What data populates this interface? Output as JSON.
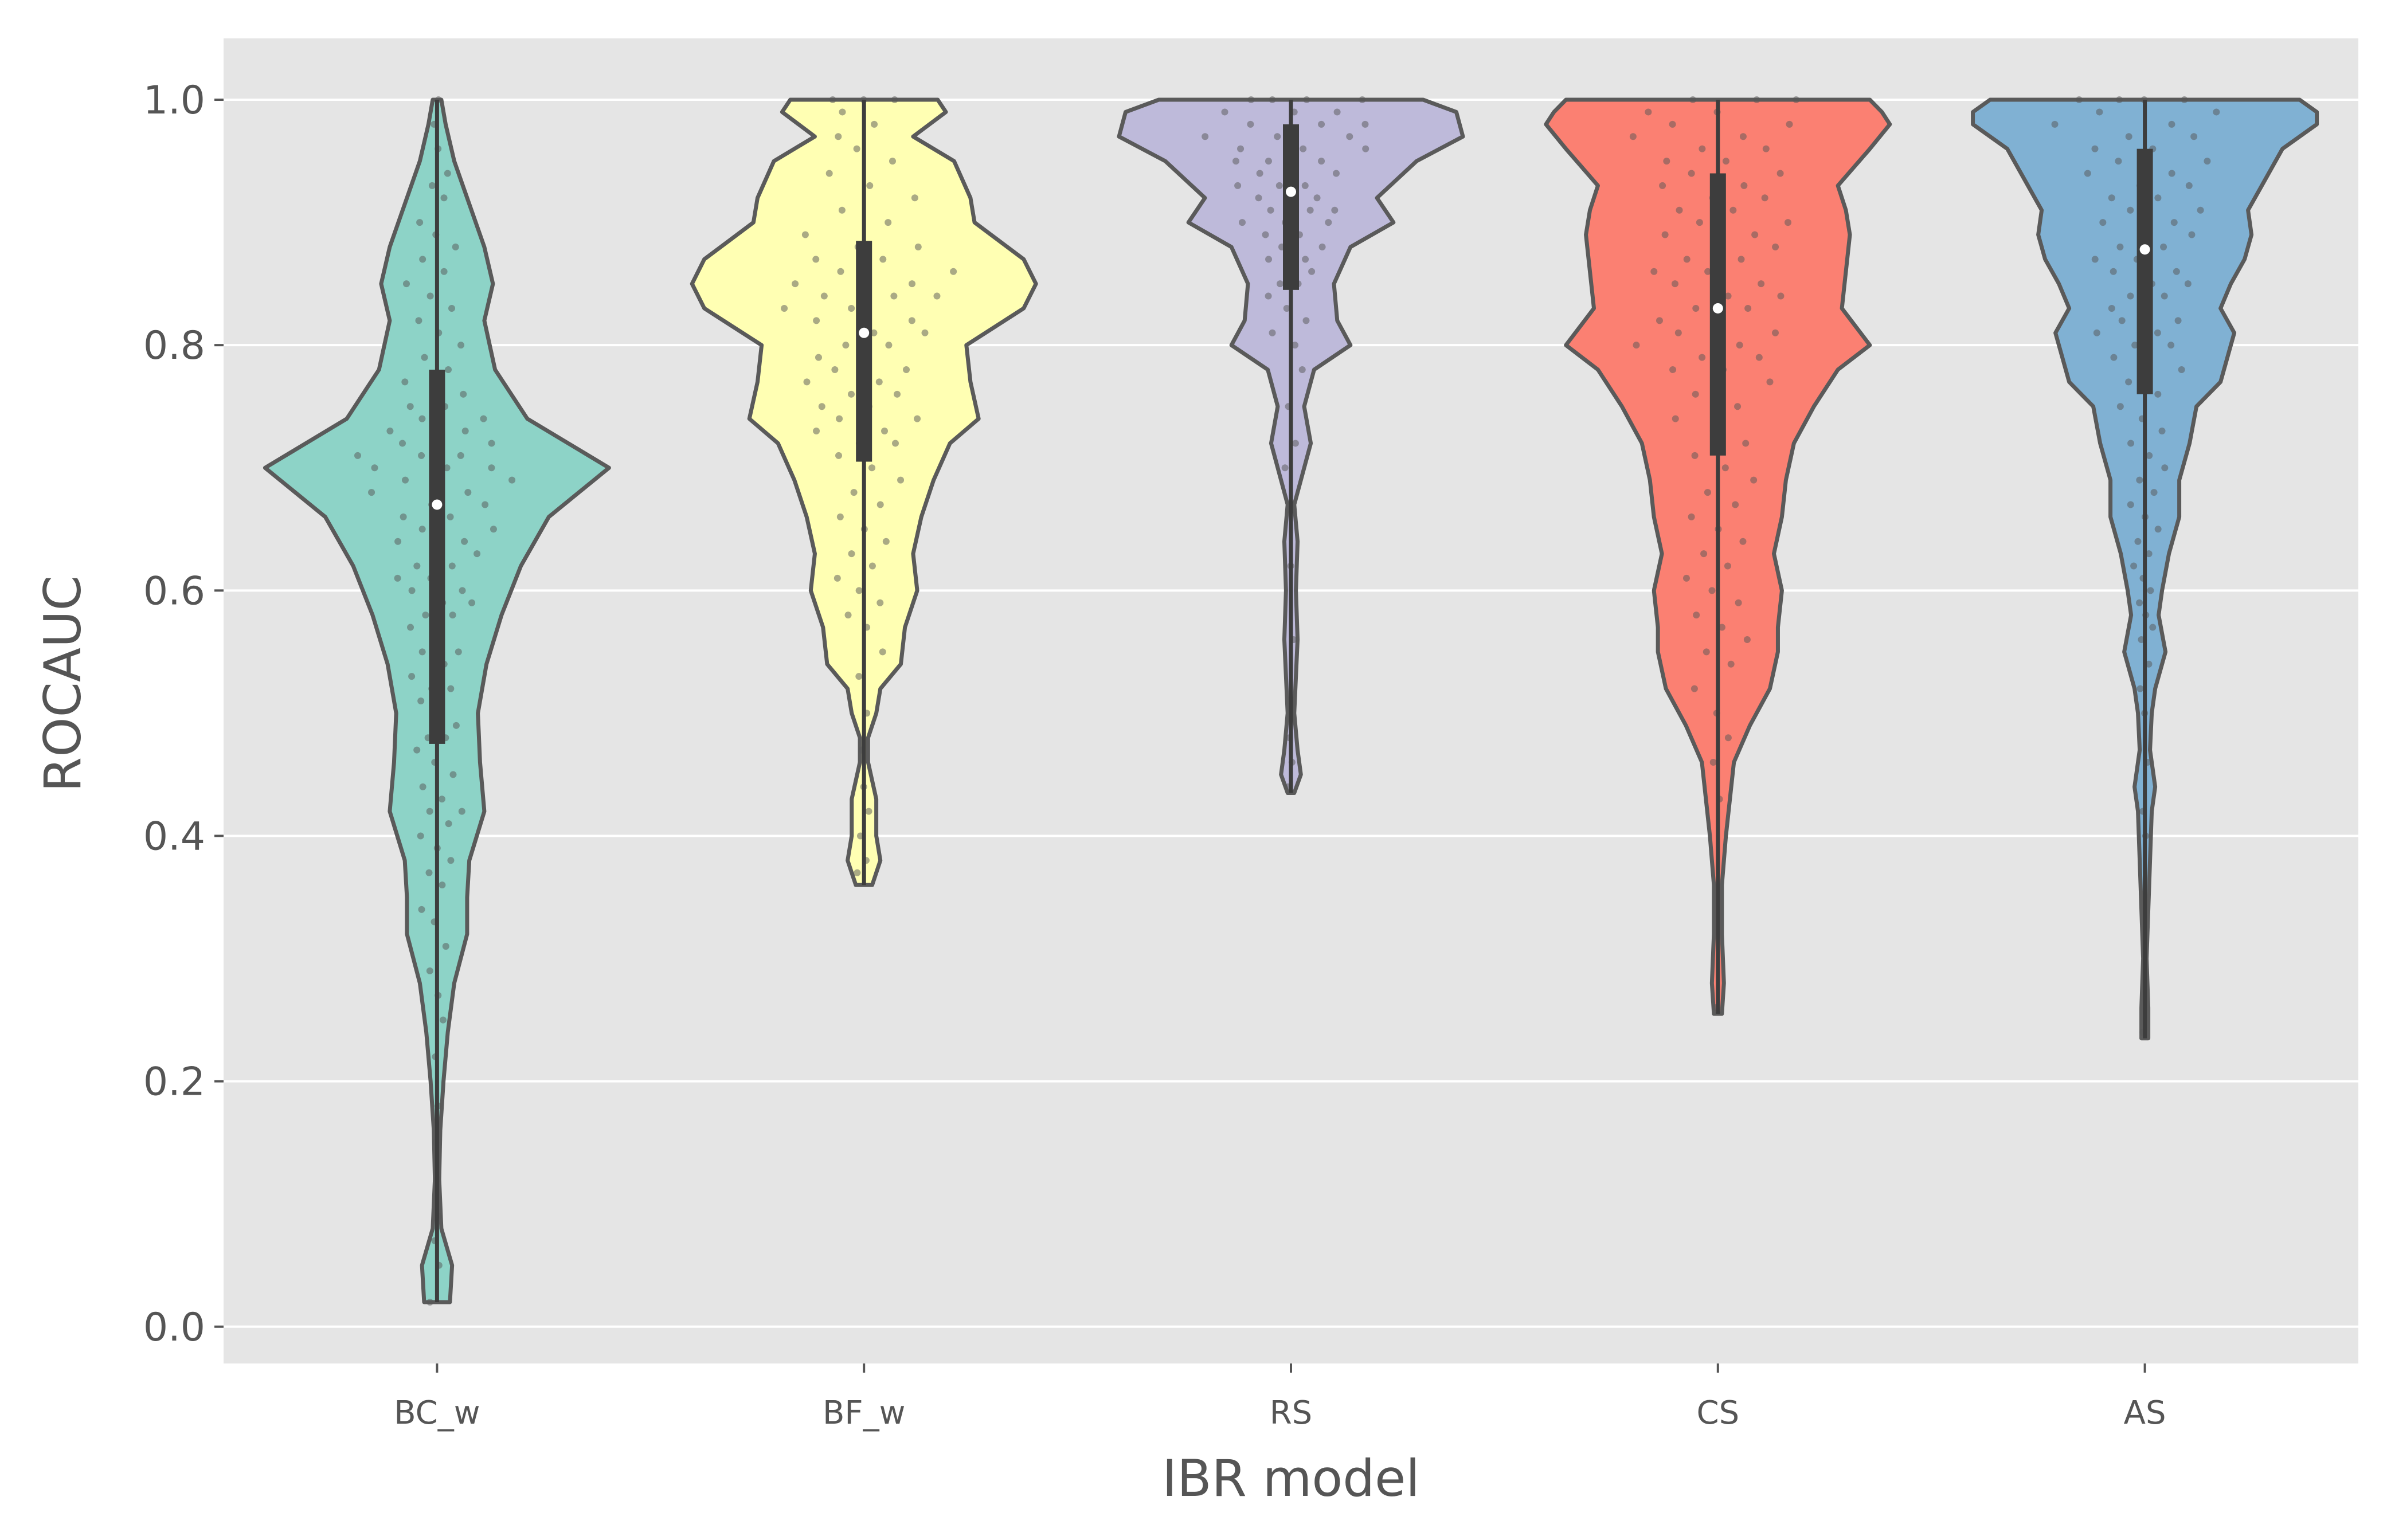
{
  "chart_data": {
    "type": "violin",
    "xlabel": "IBR model",
    "ylabel": "ROCAUC",
    "categories": [
      "BC_w",
      "BF_w",
      "RS",
      "CS",
      "AS"
    ],
    "ylim": [
      -0.03,
      1.05
    ],
    "yticks": [
      0.0,
      0.2,
      0.4,
      0.6,
      0.8,
      1.0
    ],
    "ytick_labels": [
      "0.0",
      "0.2",
      "0.4",
      "0.6",
      "0.8",
      "1.0"
    ],
    "grid": true,
    "legend": "none",
    "series": [
      {
        "category": "BC_w",
        "color": "#8dd3c7",
        "min": 0.02,
        "q1": 0.475,
        "median": 0.67,
        "q3": 0.78,
        "max": 1.0,
        "density": [
          [
            0.02,
            0.06
          ],
          [
            0.05,
            0.07
          ],
          [
            0.08,
            0.02
          ],
          [
            0.12,
            0.01
          ],
          [
            0.16,
            0.015
          ],
          [
            0.2,
            0.03
          ],
          [
            0.24,
            0.05
          ],
          [
            0.28,
            0.08
          ],
          [
            0.32,
            0.14
          ],
          [
            0.35,
            0.14
          ],
          [
            0.38,
            0.15
          ],
          [
            0.42,
            0.22
          ],
          [
            0.46,
            0.2
          ],
          [
            0.5,
            0.19
          ],
          [
            0.54,
            0.23
          ],
          [
            0.58,
            0.3
          ],
          [
            0.62,
            0.39
          ],
          [
            0.66,
            0.52
          ],
          [
            0.7,
            0.8
          ],
          [
            0.74,
            0.42
          ],
          [
            0.78,
            0.27
          ],
          [
            0.82,
            0.22
          ],
          [
            0.85,
            0.26
          ],
          [
            0.88,
            0.22
          ],
          [
            0.92,
            0.14
          ],
          [
            0.95,
            0.08
          ],
          [
            0.98,
            0.04
          ],
          [
            1.0,
            0.02
          ]
        ],
        "points": [
          0.02,
          0.05,
          0.07,
          0.09,
          0.12,
          0.15,
          0.18,
          0.22,
          0.25,
          0.27,
          0.29,
          0.31,
          0.33,
          0.34,
          0.36,
          0.37,
          0.38,
          0.39,
          0.4,
          0.41,
          0.42,
          0.42,
          0.43,
          0.44,
          0.45,
          0.46,
          0.47,
          0.48,
          0.48,
          0.49,
          0.5,
          0.51,
          0.52,
          0.52,
          0.53,
          0.54,
          0.55,
          0.55,
          0.56,
          0.57,
          0.58,
          0.58,
          0.59,
          0.59,
          0.6,
          0.6,
          0.61,
          0.61,
          0.62,
          0.62,
          0.63,
          0.63,
          0.64,
          0.64,
          0.65,
          0.65,
          0.66,
          0.66,
          0.67,
          0.67,
          0.68,
          0.68,
          0.69,
          0.69,
          0.7,
          0.7,
          0.7,
          0.71,
          0.71,
          0.71,
          0.72,
          0.72,
          0.72,
          0.73,
          0.73,
          0.74,
          0.74,
          0.75,
          0.75,
          0.76,
          0.77,
          0.77,
          0.78,
          0.79,
          0.8,
          0.81,
          0.82,
          0.83,
          0.84,
          0.85,
          0.86,
          0.87,
          0.88,
          0.89,
          0.9,
          0.92,
          0.93,
          0.94,
          0.96,
          0.98,
          1.0
        ]
      },
      {
        "category": "BF_w",
        "color": "#ffffb3",
        "min": 0.36,
        "q1": 0.705,
        "median": 0.81,
        "q3": 0.885,
        "max": 1.0,
        "density": [
          [
            0.36,
            0.02
          ],
          [
            0.38,
            0.04
          ],
          [
            0.4,
            0.03
          ],
          [
            0.43,
            0.03
          ],
          [
            0.46,
            0.01
          ],
          [
            0.48,
            0.01
          ],
          [
            0.5,
            0.03
          ],
          [
            0.52,
            0.04
          ],
          [
            0.54,
            0.09
          ],
          [
            0.57,
            0.1
          ],
          [
            0.6,
            0.13
          ],
          [
            0.63,
            0.12
          ],
          [
            0.66,
            0.14
          ],
          [
            0.69,
            0.17
          ],
          [
            0.72,
            0.21
          ],
          [
            0.74,
            0.28
          ],
          [
            0.77,
            0.26
          ],
          [
            0.8,
            0.25
          ],
          [
            0.83,
            0.39
          ],
          [
            0.85,
            0.42
          ],
          [
            0.87,
            0.39
          ],
          [
            0.9,
            0.27
          ],
          [
            0.92,
            0.26
          ],
          [
            0.95,
            0.22
          ],
          [
            0.97,
            0.12
          ],
          [
            0.99,
            0.2
          ],
          [
            1.0,
            0.18
          ]
        ],
        "points": [
          0.37,
          0.38,
          0.4,
          0.42,
          0.44,
          0.47,
          0.5,
          0.53,
          0.55,
          0.57,
          0.58,
          0.59,
          0.6,
          0.61,
          0.62,
          0.63,
          0.64,
          0.65,
          0.66,
          0.67,
          0.68,
          0.69,
          0.7,
          0.71,
          0.72,
          0.72,
          0.73,
          0.73,
          0.74,
          0.74,
          0.75,
          0.75,
          0.76,
          0.76,
          0.77,
          0.77,
          0.78,
          0.78,
          0.79,
          0.79,
          0.8,
          0.8,
          0.81,
          0.81,
          0.82,
          0.82,
          0.83,
          0.83,
          0.84,
          0.84,
          0.84,
          0.85,
          0.85,
          0.85,
          0.86,
          0.86,
          0.87,
          0.87,
          0.88,
          0.88,
          0.89,
          0.9,
          0.91,
          0.92,
          0.93,
          0.94,
          0.95,
          0.96,
          0.97,
          0.98,
          0.99,
          1.0,
          1.0,
          1.0
        ]
      },
      {
        "category": "RS",
        "color": "#bebada",
        "min": 0.435,
        "q1": 0.845,
        "median": 0.925,
        "q3": 0.98,
        "max": 1.0,
        "density": [
          [
            0.435,
            0.01
          ],
          [
            0.45,
            0.03
          ],
          [
            0.47,
            0.02
          ],
          [
            0.5,
            0.01
          ],
          [
            0.53,
            0.015
          ],
          [
            0.56,
            0.02
          ],
          [
            0.6,
            0.015
          ],
          [
            0.64,
            0.02
          ],
          [
            0.67,
            0.01
          ],
          [
            0.7,
            0.04
          ],
          [
            0.72,
            0.06
          ],
          [
            0.75,
            0.04
          ],
          [
            0.78,
            0.07
          ],
          [
            0.8,
            0.18
          ],
          [
            0.82,
            0.14
          ],
          [
            0.85,
            0.13
          ],
          [
            0.88,
            0.18
          ],
          [
            0.9,
            0.31
          ],
          [
            0.92,
            0.26
          ],
          [
            0.95,
            0.38
          ],
          [
            0.97,
            0.52
          ],
          [
            0.99,
            0.5
          ],
          [
            1.0,
            0.4
          ]
        ],
        "points": [
          0.44,
          0.46,
          0.48,
          0.56,
          0.62,
          0.7,
          0.72,
          0.75,
          0.78,
          0.8,
          0.81,
          0.82,
          0.83,
          0.84,
          0.85,
          0.85,
          0.86,
          0.86,
          0.87,
          0.87,
          0.88,
          0.88,
          0.89,
          0.89,
          0.9,
          0.9,
          0.9,
          0.91,
          0.91,
          0.91,
          0.92,
          0.92,
          0.92,
          0.93,
          0.93,
          0.93,
          0.94,
          0.94,
          0.94,
          0.95,
          0.95,
          0.95,
          0.96,
          0.96,
          0.96,
          0.97,
          0.97,
          0.97,
          0.98,
          0.98,
          0.98,
          0.99,
          0.99,
          0.99,
          1.0,
          1.0,
          1.0,
          1.0
        ]
      },
      {
        "category": "CS",
        "color": "#fb8072",
        "min": 0.255,
        "q1": 0.71,
        "median": 0.83,
        "q3": 0.94,
        "max": 1.0,
        "density": [
          [
            0.255,
            0.01
          ],
          [
            0.28,
            0.015
          ],
          [
            0.32,
            0.01
          ],
          [
            0.36,
            0.01
          ],
          [
            0.4,
            0.02
          ],
          [
            0.43,
            0.03
          ],
          [
            0.46,
            0.04
          ],
          [
            0.49,
            0.08
          ],
          [
            0.52,
            0.13
          ],
          [
            0.55,
            0.15
          ],
          [
            0.57,
            0.15
          ],
          [
            0.6,
            0.16
          ],
          [
            0.63,
            0.14
          ],
          [
            0.66,
            0.16
          ],
          [
            0.69,
            0.17
          ],
          [
            0.72,
            0.19
          ],
          [
            0.75,
            0.24
          ],
          [
            0.78,
            0.3
          ],
          [
            0.8,
            0.38
          ],
          [
            0.83,
            0.31
          ],
          [
            0.86,
            0.32
          ],
          [
            0.89,
            0.33
          ],
          [
            0.91,
            0.32
          ],
          [
            0.93,
            0.3
          ],
          [
            0.96,
            0.38
          ],
          [
            0.98,
            0.43
          ],
          [
            0.99,
            0.41
          ],
          [
            1.0,
            0.38
          ]
        ],
        "points": [
          0.26,
          0.43,
          0.46,
          0.48,
          0.5,
          0.52,
          0.54,
          0.55,
          0.56,
          0.57,
          0.58,
          0.59,
          0.6,
          0.61,
          0.62,
          0.63,
          0.64,
          0.65,
          0.66,
          0.67,
          0.68,
          0.69,
          0.7,
          0.71,
          0.72,
          0.73,
          0.74,
          0.75,
          0.76,
          0.77,
          0.78,
          0.78,
          0.79,
          0.79,
          0.8,
          0.8,
          0.81,
          0.81,
          0.82,
          0.82,
          0.83,
          0.83,
          0.84,
          0.84,
          0.85,
          0.85,
          0.86,
          0.86,
          0.87,
          0.87,
          0.88,
          0.88,
          0.89,
          0.89,
          0.9,
          0.9,
          0.91,
          0.91,
          0.92,
          0.92,
          0.93,
          0.93,
          0.94,
          0.94,
          0.95,
          0.95,
          0.96,
          0.96,
          0.97,
          0.97,
          0.98,
          0.98,
          0.99,
          0.99,
          1.0,
          1.0,
          1.0
        ]
      },
      {
        "category": "AS",
        "color": "#80b1d3",
        "min": 0.235,
        "q1": 0.76,
        "median": 0.878,
        "q3": 0.96,
        "max": 1.0,
        "density": [
          [
            0.235,
            0.01
          ],
          [
            0.26,
            0.01
          ],
          [
            0.3,
            0.005
          ],
          [
            0.34,
            0.01
          ],
          [
            0.38,
            0.015
          ],
          [
            0.42,
            0.02
          ],
          [
            0.44,
            0.03
          ],
          [
            0.47,
            0.015
          ],
          [
            0.5,
            0.02
          ],
          [
            0.52,
            0.03
          ],
          [
            0.55,
            0.06
          ],
          [
            0.58,
            0.04
          ],
          [
            0.6,
            0.05
          ],
          [
            0.63,
            0.07
          ],
          [
            0.66,
            0.1
          ],
          [
            0.69,
            0.1
          ],
          [
            0.72,
            0.13
          ],
          [
            0.75,
            0.15
          ],
          [
            0.77,
            0.22
          ],
          [
            0.79,
            0.24
          ],
          [
            0.81,
            0.26
          ],
          [
            0.83,
            0.22
          ],
          [
            0.85,
            0.25
          ],
          [
            0.87,
            0.29
          ],
          [
            0.89,
            0.31
          ],
          [
            0.91,
            0.3
          ],
          [
            0.93,
            0.34
          ],
          [
            0.96,
            0.4
          ],
          [
            0.98,
            0.5
          ],
          [
            0.99,
            0.5
          ],
          [
            1.0,
            0.45
          ]
        ],
        "points": [
          0.24,
          0.4,
          0.42,
          0.46,
          0.5,
          0.52,
          0.54,
          0.56,
          0.57,
          0.58,
          0.59,
          0.6,
          0.61,
          0.62,
          0.63,
          0.64,
          0.65,
          0.66,
          0.67,
          0.68,
          0.69,
          0.7,
          0.71,
          0.72,
          0.73,
          0.74,
          0.75,
          0.76,
          0.77,
          0.78,
          0.79,
          0.79,
          0.8,
          0.8,
          0.81,
          0.81,
          0.82,
          0.82,
          0.83,
          0.83,
          0.84,
          0.84,
          0.85,
          0.85,
          0.86,
          0.86,
          0.87,
          0.87,
          0.88,
          0.88,
          0.89,
          0.89,
          0.9,
          0.9,
          0.91,
          0.91,
          0.92,
          0.92,
          0.93,
          0.93,
          0.94,
          0.94,
          0.95,
          0.95,
          0.96,
          0.96,
          0.97,
          0.97,
          0.98,
          0.98,
          0.99,
          0.99,
          1.0,
          1.0,
          1.0,
          1.0
        ]
      }
    ]
  }
}
